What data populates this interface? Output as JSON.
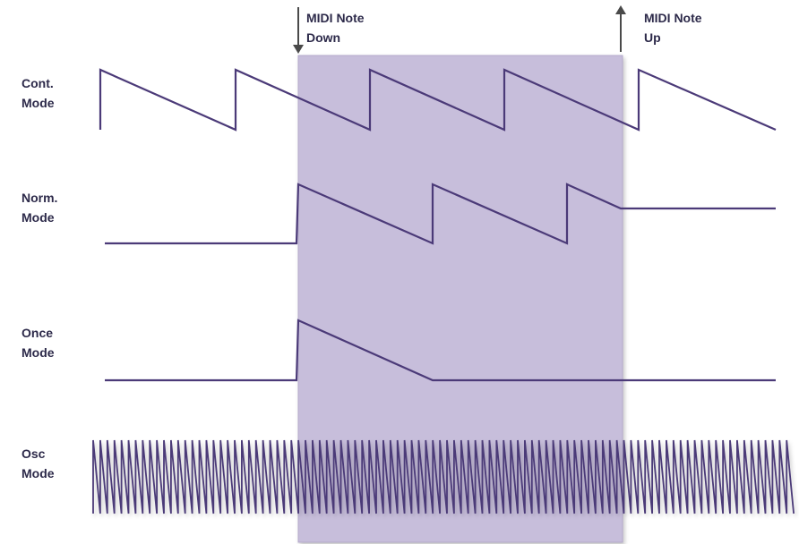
{
  "markers": {
    "note_down": {
      "line1": "MIDI Note",
      "line2": "Down"
    },
    "note_up": {
      "line1": "MIDI Note",
      "line2": "Up"
    }
  },
  "modes": [
    {
      "id": "cont",
      "line1": "Cont.",
      "line2": "Mode"
    },
    {
      "id": "norm",
      "line1": "Norm.",
      "line2": "Mode"
    },
    {
      "id": "once",
      "line1": "Once",
      "line2": "Mode"
    },
    {
      "id": "osc",
      "line1": "Osc",
      "line2": "Mode"
    }
  ],
  "colors": {
    "waveform": "#4b3a78",
    "note_region_fill": "#c7bedb",
    "note_region_edge": "#b4aacb",
    "text": "#2d2a4a",
    "arrow": "#4a4a4a"
  }
}
